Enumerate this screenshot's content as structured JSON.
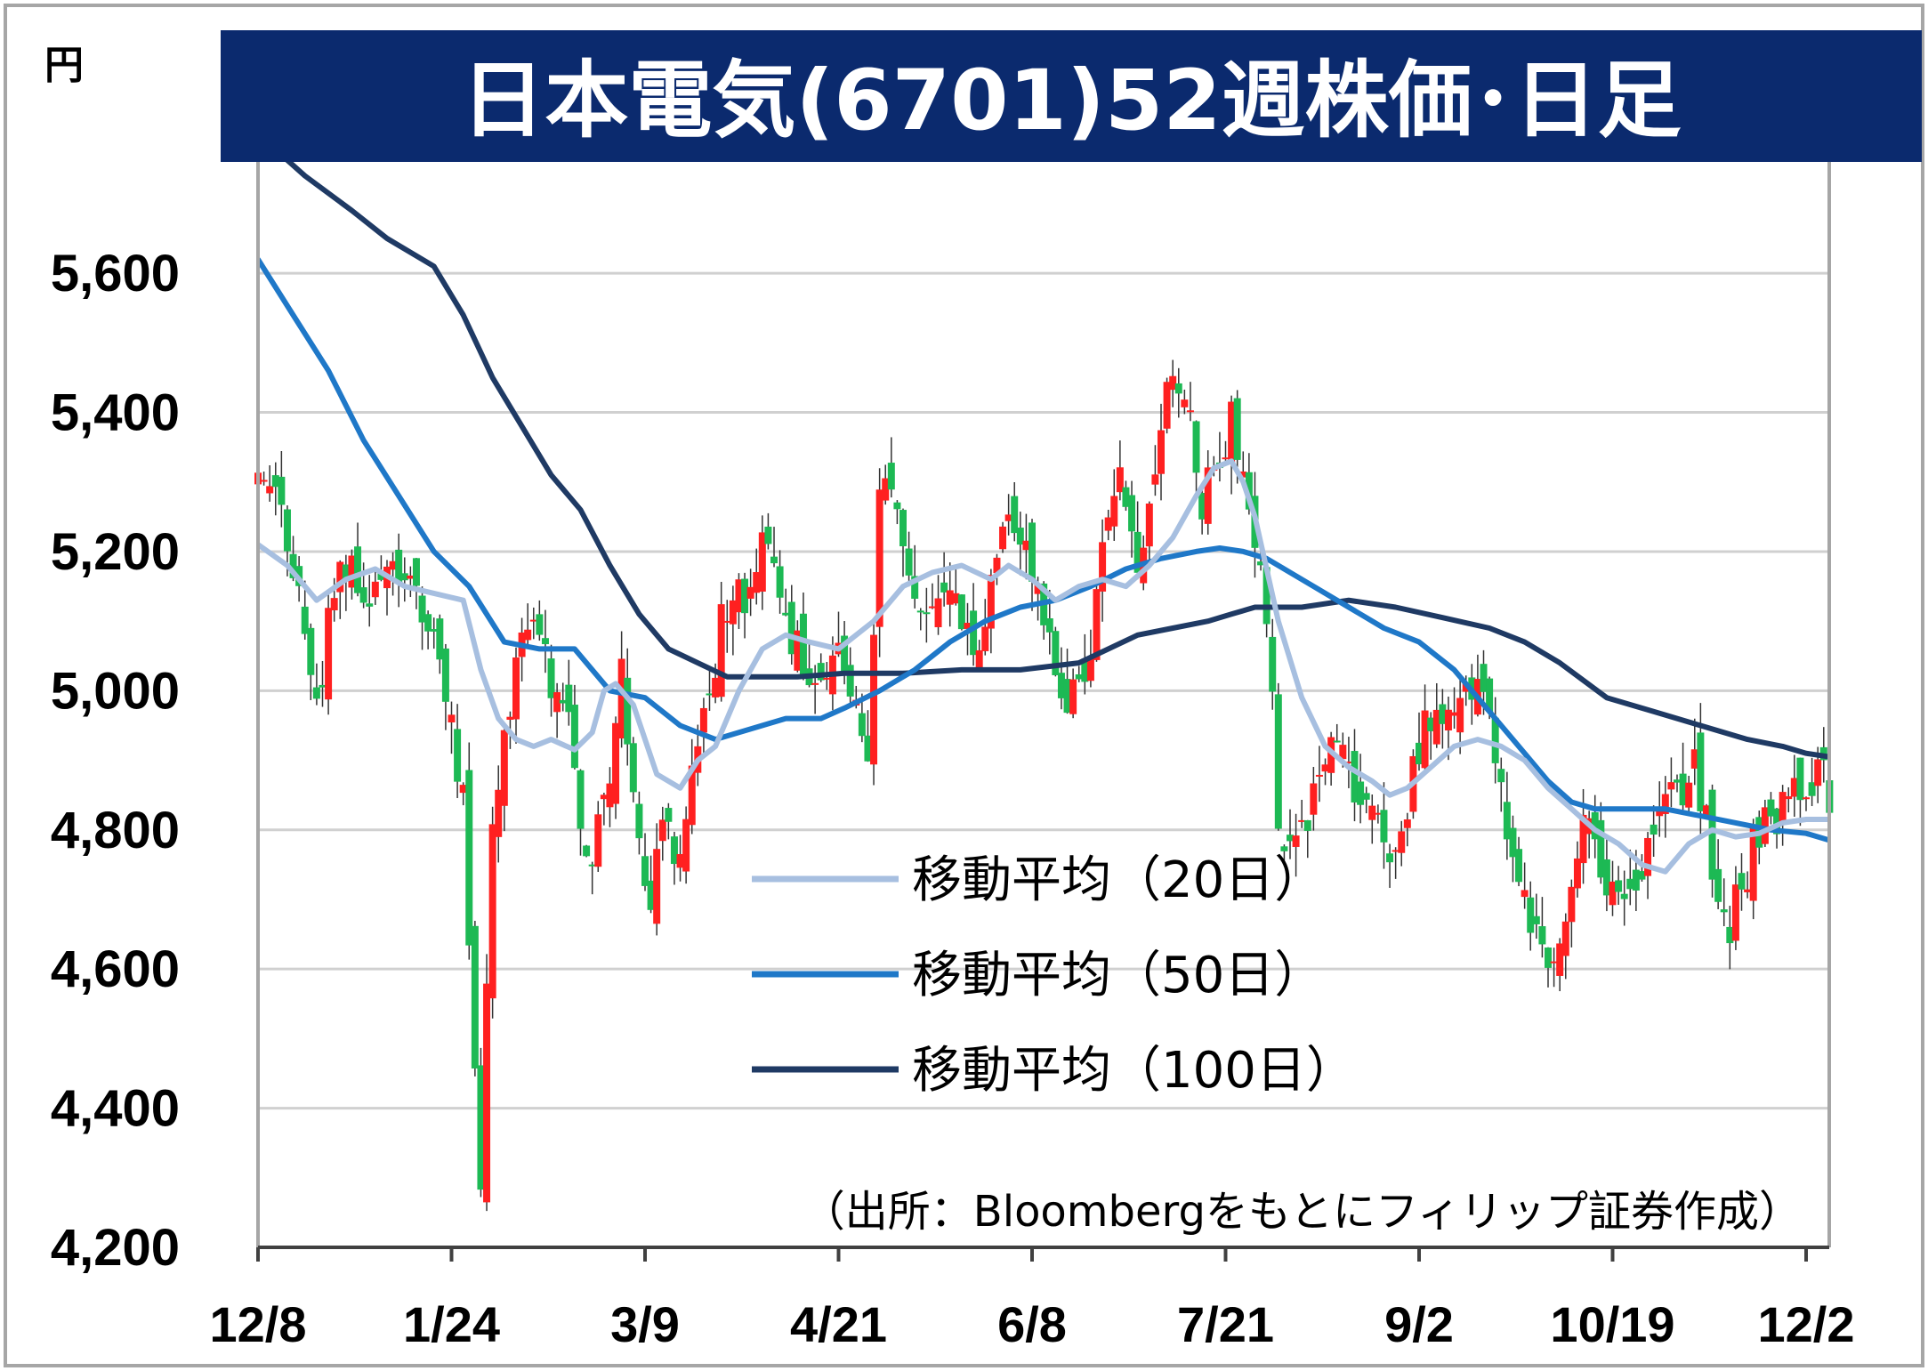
{
  "chart_data": {
    "type": "candlestick",
    "title": "日本電気(6701)52週株価･日足",
    "y_unit": "円",
    "ylim": [
      4200,
      5700
    ],
    "y_ticks": [
      4200,
      4400,
      4600,
      4800,
      5000,
      5200,
      5400,
      5600
    ],
    "y_tick_labels": [
      "4,200",
      "4,400",
      "4,600",
      "4,800",
      "5,000",
      "5,200",
      "5,400",
      "5,600"
    ],
    "x_tick_labels": [
      "12/8",
      "1/24",
      "3/9",
      "4/21",
      "6/8",
      "7/21",
      "9/2",
      "10/19",
      "12/2"
    ],
    "x_tick_day_index": [
      0,
      33,
      66,
      99,
      132,
      165,
      198,
      231,
      264
    ],
    "grid": true,
    "legend_position": "inside-lower-middle",
    "source_note": "（出所：Bloombergをもとにフィリップ証券作成）",
    "up_color": "#ff2020",
    "down_color": "#1db954",
    "candles_anchors": [
      [
        0,
        5320
      ],
      [
        4,
        5250
      ],
      [
        8,
        5080
      ],
      [
        10,
        4990
      ],
      [
        14,
        5180
      ],
      [
        18,
        5140
      ],
      [
        22,
        5170
      ],
      [
        26,
        5160
      ],
      [
        28,
        5120
      ],
      [
        31,
        5050
      ],
      [
        33,
        4960
      ],
      [
        35,
        4830
      ],
      [
        36,
        4650
      ],
      [
        37,
        4450
      ],
      [
        38,
        4310
      ],
      [
        40,
        4810
      ],
      [
        42,
        4960
      ],
      [
        45,
        5050
      ],
      [
        48,
        5090
      ],
      [
        50,
        5020
      ],
      [
        53,
        4950
      ],
      [
        56,
        4750
      ],
      [
        59,
        4820
      ],
      [
        62,
        5020
      ],
      [
        65,
        4820
      ],
      [
        67,
        4680
      ],
      [
        69,
        4840
      ],
      [
        71,
        4760
      ],
      [
        73,
        4820
      ],
      [
        76,
        4940
      ],
      [
        79,
        5090
      ],
      [
        83,
        5140
      ],
      [
        87,
        5230
      ],
      [
        90,
        5090
      ],
      [
        94,
        5040
      ],
      [
        97,
        5050
      ],
      [
        99,
        5060
      ],
      [
        101,
        5000
      ],
      [
        104,
        4920
      ],
      [
        106,
        5280
      ],
      [
        108,
        5320
      ],
      [
        111,
        5200
      ],
      [
        114,
        5100
      ],
      [
        117,
        5130
      ],
      [
        120,
        5120
      ],
      [
        123,
        5050
      ],
      [
        126,
        5220
      ],
      [
        129,
        5260
      ],
      [
        132,
        5180
      ],
      [
        135,
        5080
      ],
      [
        138,
        4980
      ],
      [
        141,
        4990
      ],
      [
        144,
        5180
      ],
      [
        147,
        5300
      ],
      [
        150,
        5180
      ],
      [
        153,
        5340
      ],
      [
        156,
        5450
      ],
      [
        159,
        5400
      ],
      [
        161,
        5280
      ],
      [
        164,
        5300
      ],
      [
        166,
        5400
      ],
      [
        168,
        5310
      ],
      [
        170,
        5230
      ],
      [
        172,
        5120
      ],
      [
        174,
        4820
      ],
      [
        176,
        4770
      ],
      [
        178,
        4800
      ],
      [
        181,
        4900
      ],
      [
        184,
        4920
      ],
      [
        187,
        4860
      ],
      [
        190,
        4830
      ],
      [
        193,
        4720
      ],
      [
        196,
        4840
      ],
      [
        199,
        4950
      ],
      [
        202,
        4940
      ],
      [
        205,
        5000
      ],
      [
        208,
        5020
      ],
      [
        211,
        4900
      ],
      [
        214,
        4760
      ],
      [
        217,
        4680
      ],
      [
        220,
        4600
      ],
      [
        223,
        4650
      ],
      [
        226,
        4820
      ],
      [
        229,
        4750
      ],
      [
        232,
        4720
      ],
      [
        234,
        4680
      ],
      [
        237,
        4800
      ],
      [
        240,
        4860
      ],
      [
        243,
        4820
      ],
      [
        245,
        4900
      ],
      [
        247,
        4820
      ],
      [
        249,
        4700
      ],
      [
        251,
        4660
      ],
      [
        253,
        4720
      ],
      [
        256,
        4800
      ],
      [
        259,
        4810
      ],
      [
        262,
        4850
      ],
      [
        264,
        4830
      ],
      [
        266,
        4930
      ],
      [
        267,
        4880
      ],
      [
        268,
        4830
      ]
    ],
    "series": [
      {
        "name": "移動平均（20日）",
        "color": "#a7bfe0",
        "x": [
          0,
          5,
          10,
          15,
          20,
          25,
          30,
          35,
          38,
          41,
          44,
          47,
          50,
          54,
          57,
          59,
          61,
          64,
          68,
          72,
          75,
          78,
          82,
          86,
          90,
          94,
          99,
          105,
          110,
          115,
          120,
          125,
          128,
          132,
          136,
          140,
          144,
          148,
          152,
          156,
          160,
          163,
          166,
          168,
          170,
          174,
          178,
          182,
          186,
          190,
          193,
          196,
          200,
          204,
          208,
          212,
          216,
          220,
          224,
          228,
          232,
          236,
          240,
          244,
          248,
          252,
          256,
          260,
          264,
          268
        ],
        "values": [
          5210,
          5180,
          5130,
          5160,
          5175,
          5150,
          5140,
          5130,
          5030,
          4960,
          4930,
          4920,
          4930,
          4915,
          4940,
          5000,
          5010,
          4980,
          4880,
          4860,
          4900,
          4920,
          5000,
          5060,
          5080,
          5070,
          5060,
          5100,
          5150,
          5170,
          5180,
          5160,
          5180,
          5160,
          5130,
          5150,
          5160,
          5150,
          5180,
          5220,
          5280,
          5320,
          5330,
          5300,
          5250,
          5100,
          4990,
          4920,
          4890,
          4870,
          4850,
          4860,
          4890,
          4920,
          4930,
          4920,
          4900,
          4860,
          4830,
          4800,
          4780,
          4750,
          4740,
          4780,
          4800,
          4790,
          4795,
          4810,
          4815,
          4815
        ]
      },
      {
        "name": "移動平均（50日）",
        "color": "#1f78c8",
        "x": [
          0,
          6,
          12,
          18,
          24,
          30,
          36,
          42,
          48,
          54,
          60,
          66,
          72,
          78,
          84,
          90,
          96,
          100,
          106,
          112,
          118,
          124,
          130,
          136,
          142,
          148,
          154,
          160,
          164,
          168,
          172,
          176,
          180,
          186,
          192,
          198,
          204,
          210,
          216,
          220,
          224,
          228,
          232,
          236,
          240,
          246,
          252,
          258,
          264,
          268
        ],
        "values": [
          5620,
          5540,
          5460,
          5360,
          5280,
          5200,
          5150,
          5070,
          5060,
          5060,
          5000,
          4990,
          4950,
          4930,
          4945,
          4960,
          4960,
          4975,
          5000,
          5030,
          5070,
          5100,
          5120,
          5130,
          5150,
          5175,
          5190,
          5200,
          5205,
          5200,
          5190,
          5170,
          5150,
          5120,
          5090,
          5070,
          5030,
          4970,
          4910,
          4870,
          4840,
          4830,
          4830,
          4830,
          4830,
          4820,
          4810,
          4800,
          4795,
          4785
        ]
      },
      {
        "name": "移動平均（100日）",
        "color": "#1f3a64",
        "x": [
          0,
          8,
          16,
          22,
          26,
          30,
          35,
          40,
          45,
          50,
          55,
          60,
          65,
          70,
          75,
          80,
          86,
          92,
          100,
          110,
          120,
          130,
          140,
          150,
          156,
          162,
          166,
          170,
          178,
          186,
          194,
          202,
          210,
          216,
          222,
          230,
          238,
          246,
          254,
          260,
          264,
          268
        ],
        "values": [
          5800,
          5740,
          5690,
          5650,
          5630,
          5610,
          5540,
          5450,
          5380,
          5310,
          5260,
          5180,
          5110,
          5060,
          5040,
          5020,
          5020,
          5020,
          5025,
          5025,
          5030,
          5030,
          5040,
          5080,
          5090,
          5100,
          5110,
          5120,
          5120,
          5130,
          5120,
          5105,
          5090,
          5070,
          5040,
          4990,
          4970,
          4950,
          4930,
          4920,
          4910,
          4905
        ]
      }
    ]
  },
  "legend": {
    "items": [
      {
        "label": "移動平均（20日）",
        "color": "#a7bfe0"
      },
      {
        "label": "移動平均（50日）",
        "color": "#1f78c8"
      },
      {
        "label": "移動平均（100日）",
        "color": "#1f3a64"
      }
    ]
  },
  "colors": {
    "title_bg": "#0b2a6e",
    "frame": "#a6a6a6",
    "grid": "#d0d0d0",
    "axis": "#404040"
  }
}
